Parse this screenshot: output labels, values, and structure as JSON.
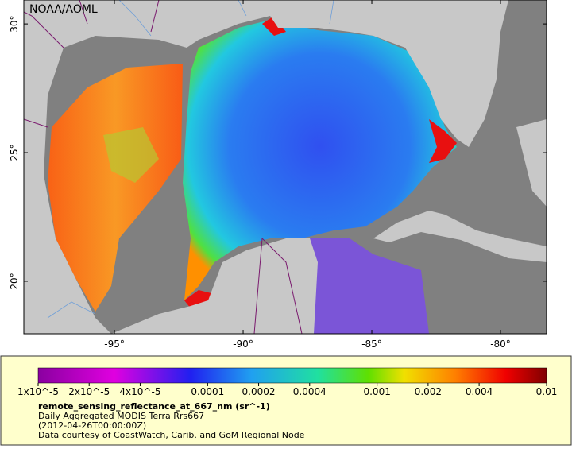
{
  "map": {
    "credit": "NOAA/AOML",
    "lon_range": [
      -98.52,
      -78.21
    ],
    "lat_range": [
      17.96,
      30.93
    ],
    "lon_ticks": [
      {
        "value": -95,
        "label": "-95°"
      },
      {
        "value": -90,
        "label": "-90°"
      },
      {
        "value": -85,
        "label": "-85°"
      },
      {
        "value": -80,
        "label": "-80°"
      }
    ],
    "lat_ticks": [
      {
        "value": 20,
        "label": "20°"
      },
      {
        "value": 25,
        "label": "25°"
      },
      {
        "value": 30,
        "label": "30°"
      }
    ]
  },
  "legend": {
    "scale": "log",
    "range": [
      1e-05,
      0.01
    ],
    "ticks": [
      {
        "value": 1e-05,
        "label": "1x10^-5"
      },
      {
        "value": 2e-05,
        "label": "2x10^-5"
      },
      {
        "value": 4e-05,
        "label": "4x10^-5"
      },
      0.0001,
      0.0002,
      0.0004,
      0.001,
      0.002,
      0.004,
      0.01
    ],
    "variable": "remote_sensing_reflectance_at_667_nm (sr^-1)",
    "description": "Daily Aggregated MODIS Terra Rrs667",
    "time": "(2012-04-26T00:00:00Z)",
    "source": "Data courtesy of CoastWatch, Carib. and GoM Regional Node"
  }
}
